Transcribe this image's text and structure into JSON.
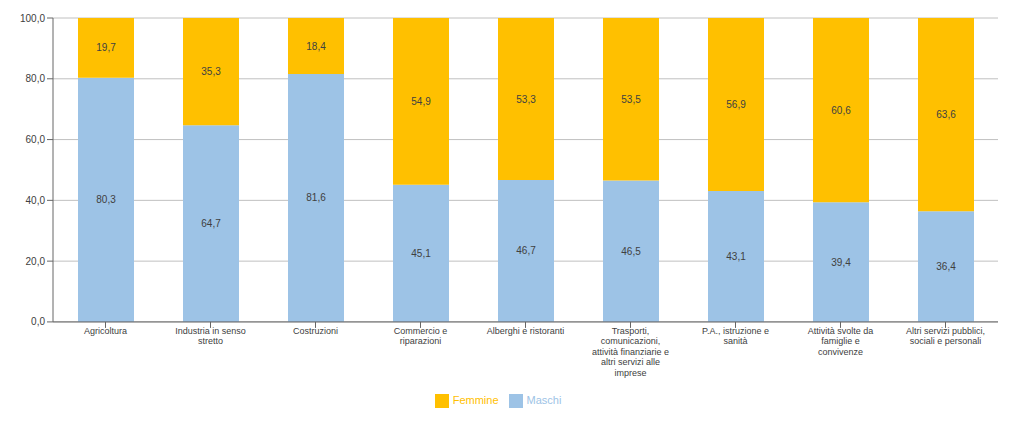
{
  "chart_data": {
    "type": "bar",
    "stacked": true,
    "categories": [
      "Agricoltura",
      "Industria in senso\nstretto",
      "Costruzioni",
      "Commercio e\nriparazioni",
      "Alberghi e ristoranti",
      "Trasporti,\ncomunicazioni,\nattività finanziarie e\naltri servizi alle\nimprese",
      "P.A., istruzione e\nsanità",
      "Attività svolte da\nfamiglie e\nconvivenze",
      "Altri servizi pubblici,\nsociali e personali"
    ],
    "series": [
      {
        "name": "Maschi",
        "color": "#9DC3E6",
        "values": [
          80.3,
          64.7,
          81.6,
          45.1,
          46.7,
          46.5,
          43.1,
          39.4,
          36.4
        ],
        "value_labels": [
          "80,3",
          "64,7",
          "81,6",
          "45,1",
          "46,7",
          "46,5",
          "43,1",
          "39,4",
          "36,4"
        ]
      },
      {
        "name": "Femmine",
        "color": "#FFC000",
        "values": [
          19.7,
          35.3,
          18.4,
          54.9,
          53.3,
          53.5,
          56.9,
          60.6,
          63.6
        ],
        "value_labels": [
          "19,7",
          "35,3",
          "18,4",
          "54,9",
          "53,3",
          "53,5",
          "56,9",
          "60,6",
          "63,6"
        ]
      }
    ],
    "ylim": [
      0,
      100
    ],
    "yticks": [
      {
        "value": 0,
        "label": "0,0"
      },
      {
        "value": 20,
        "label": "20,0"
      },
      {
        "value": 40,
        "label": "40,0"
      },
      {
        "value": 60,
        "label": "60,0"
      },
      {
        "value": 80,
        "label": "80,0"
      },
      {
        "value": 100,
        "label": "100,0"
      }
    ],
    "grid": true,
    "legend": "bottom",
    "data_labels": true
  }
}
